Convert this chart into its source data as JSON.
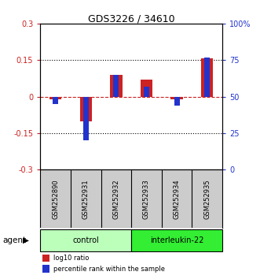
{
  "title": "GDS3226 / 34610",
  "samples": [
    "GSM252890",
    "GSM252931",
    "GSM252932",
    "GSM252933",
    "GSM252934",
    "GSM252935"
  ],
  "log10_ratio": [
    -0.012,
    -0.1,
    0.09,
    0.07,
    -0.012,
    0.158
  ],
  "percentile_rank": [
    45,
    20,
    65,
    57,
    44,
    77
  ],
  "ylim_left": [
    -0.3,
    0.3
  ],
  "ylim_right": [
    0,
    100
  ],
  "yticks_left": [
    -0.3,
    -0.15,
    0,
    0.15,
    0.3
  ],
  "yticks_right": [
    0,
    25,
    50,
    75,
    100
  ],
  "ytick_labels_left": [
    "-0.3",
    "-0.15",
    "0",
    "0.15",
    "0.3"
  ],
  "ytick_labels_right": [
    "0",
    "25",
    "50",
    "75",
    "100%"
  ],
  "dotted_lines": [
    -0.15,
    0.15
  ],
  "red_bar_width": 0.4,
  "blue_bar_width": 0.18,
  "red_color": "#cc2222",
  "blue_color": "#2233cc",
  "control_samples_count": 3,
  "interleukin_samples_count": 3,
  "control_color": "#bbffbb",
  "interleukin_color": "#33ee33",
  "agent_label": "agent",
  "control_label": "control",
  "interleukin_label": "interleukin-22",
  "legend_red": "log10 ratio",
  "legend_blue": "percentile rank within the sample",
  "sample_box_color": "#cccccc",
  "background_color": "#ffffff",
  "title_fontsize": 9,
  "tick_fontsize": 7,
  "sample_fontsize": 6,
  "legend_fontsize": 6,
  "agent_fontsize": 7.5,
  "label_fontsize": 7
}
